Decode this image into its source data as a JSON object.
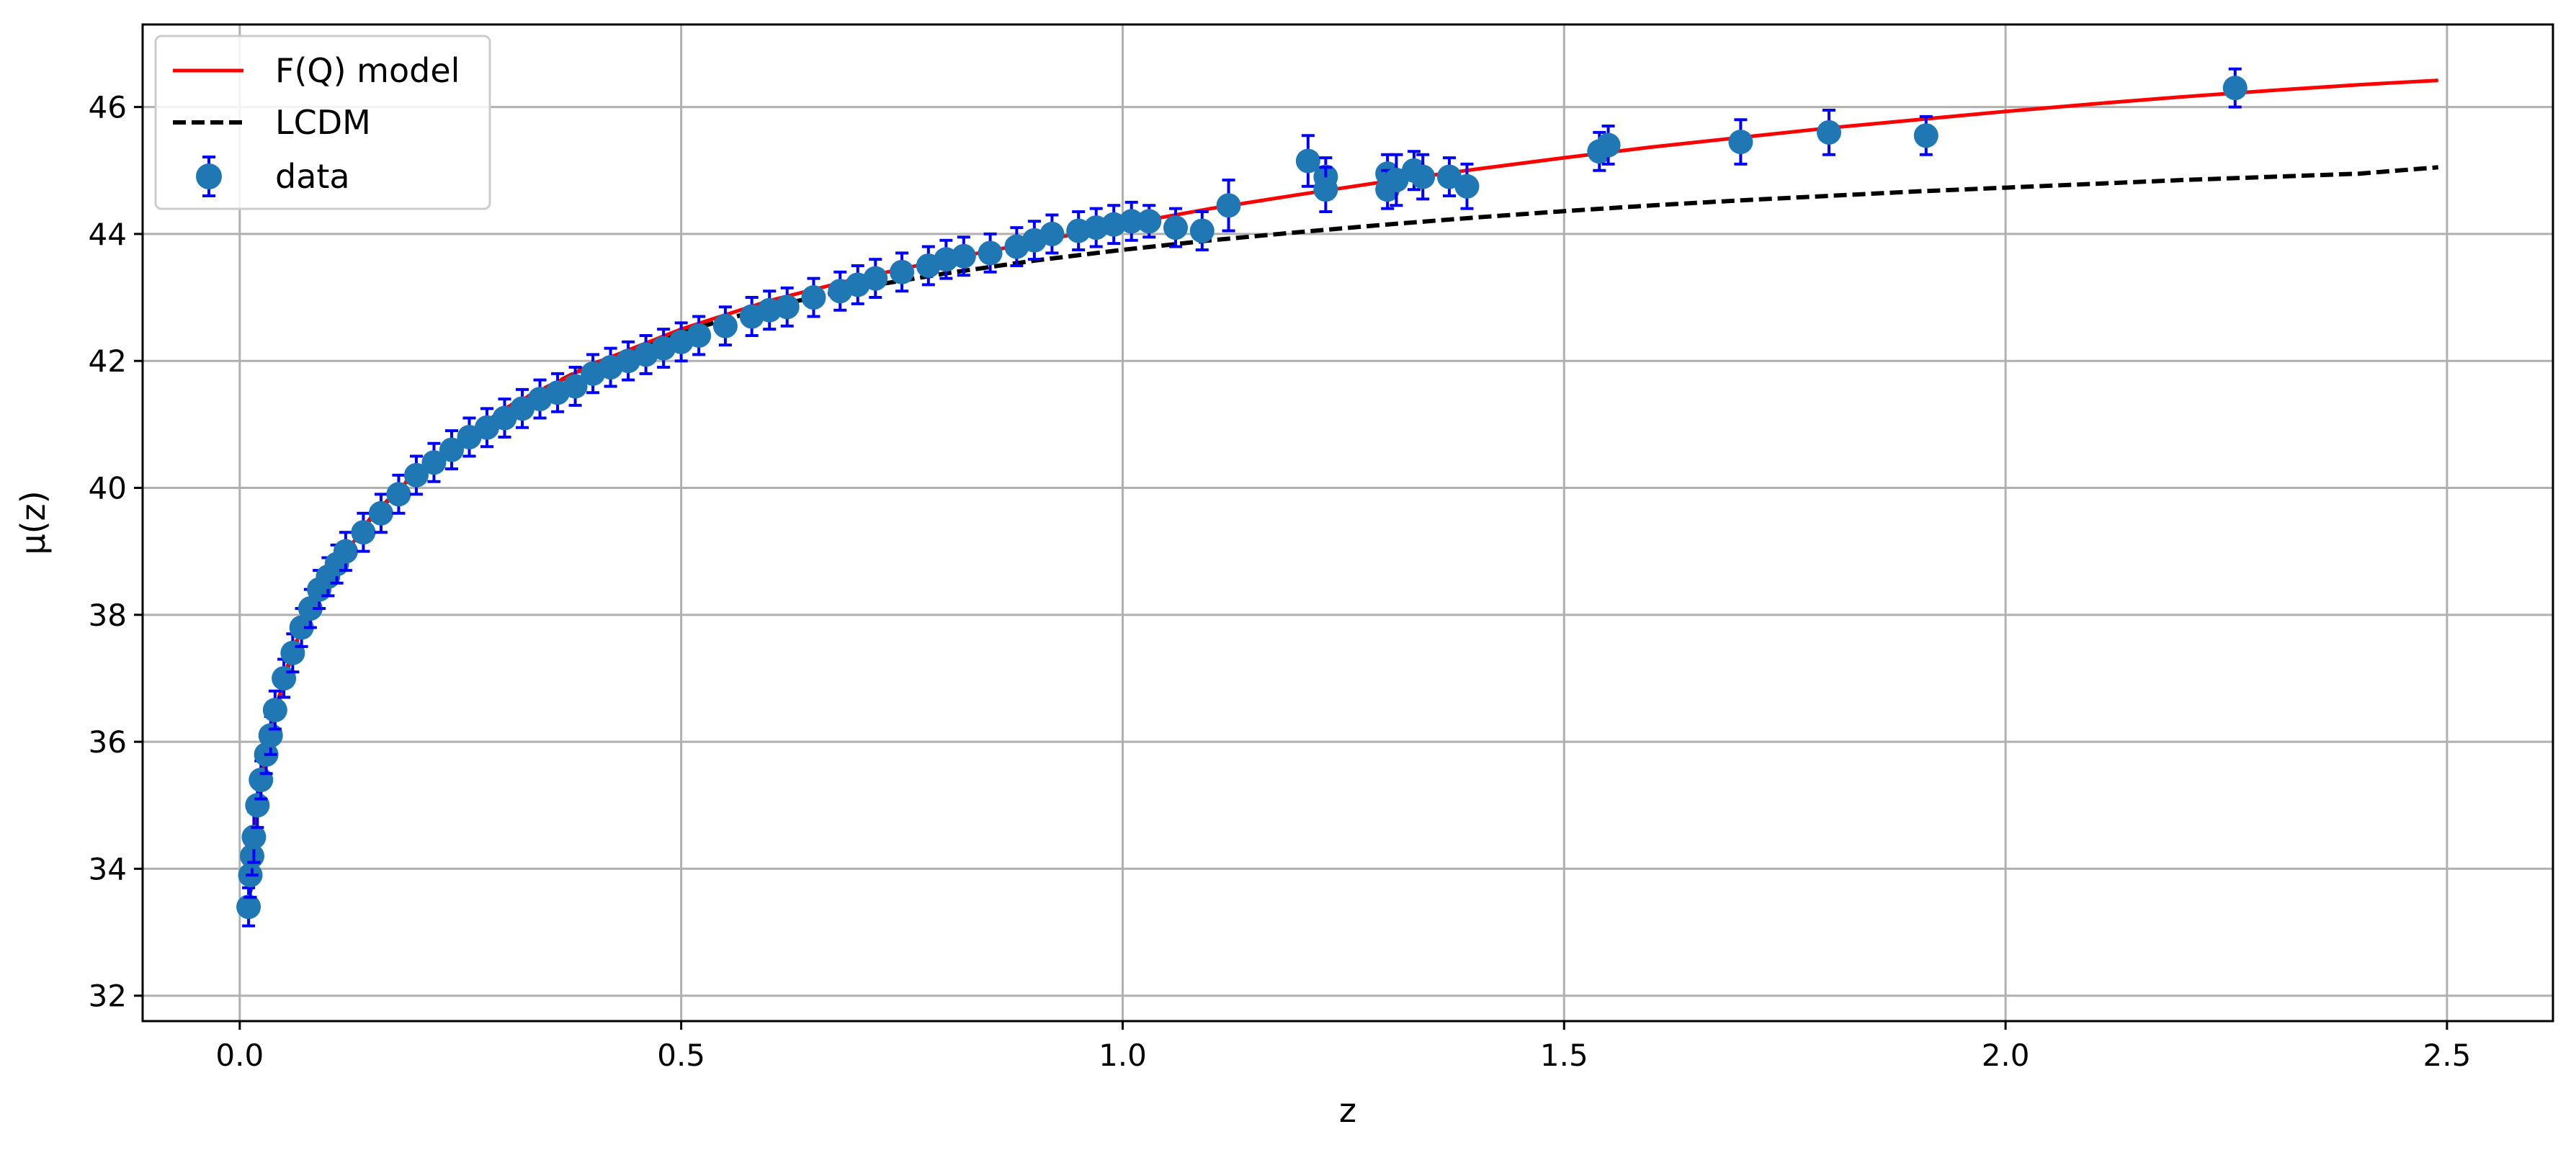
{
  "chart_data": {
    "type": "scatter",
    "xlabel": "z",
    "ylabel": "μ(z)",
    "xlim": [
      -0.11,
      2.62
    ],
    "ylim": [
      31.6,
      47.3
    ],
    "x_ticks": [
      {
        "value": 0.0,
        "label": "0.0"
      },
      {
        "value": 0.5,
        "label": "0.5"
      },
      {
        "value": 1.0,
        "label": "1.0"
      },
      {
        "value": 1.5,
        "label": "1.5"
      },
      {
        "value": 2.0,
        "label": "2.0"
      },
      {
        "value": 2.5,
        "label": "2.5"
      }
    ],
    "y_ticks": [
      {
        "value": 32,
        "label": "32"
      },
      {
        "value": 34,
        "label": "34"
      },
      {
        "value": 36,
        "label": "36"
      },
      {
        "value": 38,
        "label": "38"
      },
      {
        "value": 40,
        "label": "40"
      },
      {
        "value": 42,
        "label": "42"
      },
      {
        "value": 44,
        "label": "44"
      },
      {
        "value": 46,
        "label": "46"
      }
    ],
    "grid": true,
    "legend_position": "top-left",
    "legend": [
      {
        "label": "F(Q) model",
        "style": "solid-line",
        "color": "#ff0000"
      },
      {
        "label": "LCDM",
        "style": "dashed-line",
        "color": "#000000"
      },
      {
        "label": "data",
        "style": "marker-errorbar",
        "color": "#1f77b4",
        "error_color": "#0000ff"
      }
    ],
    "colors": {
      "fq_model": "#ff0000",
      "lcdm": "#000000",
      "data_marker": "#1f77b4",
      "error_bar": "#0000ff",
      "grid": "#b0b0b0"
    },
    "series": [
      {
        "name": "F(Q) model",
        "kind": "line",
        "x": [
          0.01,
          0.02,
          0.03,
          0.05,
          0.07,
          0.1,
          0.15,
          0.2,
          0.3,
          0.4,
          0.5,
          0.6,
          0.7,
          0.8,
          0.9,
          1.0,
          1.1,
          1.2,
          1.3,
          1.4,
          1.5,
          1.6,
          1.7,
          1.8,
          1.9,
          2.0,
          2.1,
          2.2,
          2.3,
          2.4,
          2.49
        ],
        "y": [
          33.35,
          34.9,
          35.8,
          37.0,
          37.8,
          38.6,
          39.55,
          40.25,
          41.25,
          41.95,
          42.5,
          42.95,
          43.3,
          43.6,
          43.87,
          44.15,
          44.4,
          44.62,
          44.83,
          45.02,
          45.2,
          45.37,
          45.52,
          45.67,
          45.8,
          45.93,
          46.05,
          46.16,
          46.26,
          46.35,
          46.42
        ]
      },
      {
        "name": "LCDM",
        "kind": "dashed-line",
        "x": [
          0.01,
          0.02,
          0.03,
          0.05,
          0.07,
          0.1,
          0.15,
          0.2,
          0.3,
          0.4,
          0.5,
          0.6,
          0.7,
          0.8,
          0.9,
          1.0,
          1.1,
          1.2,
          1.3,
          1.4,
          1.5,
          1.6,
          1.7,
          1.8,
          1.9,
          2.0,
          2.1,
          2.2,
          2.3,
          2.4,
          2.49
        ],
        "y": [
          33.35,
          34.9,
          35.8,
          37.0,
          37.8,
          38.6,
          39.55,
          40.25,
          41.25,
          41.95,
          42.45,
          42.85,
          43.15,
          43.38,
          43.58,
          43.75,
          43.9,
          44.03,
          44.15,
          44.26,
          44.36,
          44.45,
          44.53,
          44.6,
          44.67,
          44.73,
          44.79,
          44.85,
          44.9,
          44.95,
          45.05
        ]
      },
      {
        "name": "data",
        "kind": "errorbar",
        "x": [
          0.01,
          0.012,
          0.014,
          0.016,
          0.02,
          0.024,
          0.03,
          0.035,
          0.04,
          0.05,
          0.06,
          0.07,
          0.08,
          0.09,
          0.1,
          0.11,
          0.12,
          0.14,
          0.16,
          0.18,
          0.2,
          0.22,
          0.24,
          0.26,
          0.28,
          0.3,
          0.32,
          0.34,
          0.36,
          0.38,
          0.4,
          0.42,
          0.44,
          0.46,
          0.48,
          0.5,
          0.52,
          0.55,
          0.58,
          0.6,
          0.62,
          0.65,
          0.68,
          0.7,
          0.72,
          0.75,
          0.78,
          0.8,
          0.82,
          0.85,
          0.88,
          0.9,
          0.92,
          0.95,
          0.97,
          0.99,
          1.01,
          1.03,
          1.06,
          1.09,
          1.12,
          1.21,
          1.23,
          1.23,
          1.3,
          1.3,
          1.31,
          1.33,
          1.34,
          1.37,
          1.39,
          1.54,
          1.55,
          1.7,
          1.8,
          1.91,
          2.26
        ],
        "y": [
          33.4,
          33.9,
          34.2,
          34.5,
          35.0,
          35.4,
          35.8,
          36.1,
          36.5,
          37.0,
          37.4,
          37.8,
          38.1,
          38.4,
          38.6,
          38.8,
          39.0,
          39.3,
          39.6,
          39.9,
          40.2,
          40.4,
          40.6,
          40.8,
          40.95,
          41.1,
          41.25,
          41.4,
          41.5,
          41.6,
          41.8,
          41.9,
          42.0,
          42.1,
          42.2,
          42.3,
          42.4,
          42.55,
          42.7,
          42.8,
          42.85,
          43.0,
          43.1,
          43.2,
          43.3,
          43.4,
          43.5,
          43.6,
          43.65,
          43.7,
          43.8,
          43.9,
          44.0,
          44.05,
          44.1,
          44.15,
          44.2,
          44.2,
          44.1,
          44.05,
          44.45,
          45.15,
          44.9,
          44.7,
          44.95,
          44.7,
          44.85,
          45.0,
          44.9,
          44.9,
          44.75,
          45.3,
          45.4,
          45.45,
          45.6,
          45.55,
          46.3
        ],
        "yerr": [
          0.3,
          0.35,
          0.3,
          0.4,
          0.35,
          0.3,
          0.3,
          0.3,
          0.3,
          0.3,
          0.3,
          0.3,
          0.3,
          0.3,
          0.3,
          0.3,
          0.3,
          0.3,
          0.3,
          0.3,
          0.3,
          0.3,
          0.3,
          0.3,
          0.3,
          0.3,
          0.3,
          0.3,
          0.3,
          0.3,
          0.3,
          0.3,
          0.3,
          0.3,
          0.3,
          0.3,
          0.3,
          0.3,
          0.3,
          0.3,
          0.3,
          0.3,
          0.3,
          0.3,
          0.3,
          0.3,
          0.3,
          0.3,
          0.3,
          0.3,
          0.3,
          0.3,
          0.3,
          0.3,
          0.3,
          0.3,
          0.3,
          0.25,
          0.3,
          0.3,
          0.4,
          0.4,
          0.3,
          0.35,
          0.3,
          0.3,
          0.4,
          0.3,
          0.35,
          0.3,
          0.35,
          0.3,
          0.3,
          0.35,
          0.35,
          0.3,
          0.3
        ]
      }
    ]
  }
}
